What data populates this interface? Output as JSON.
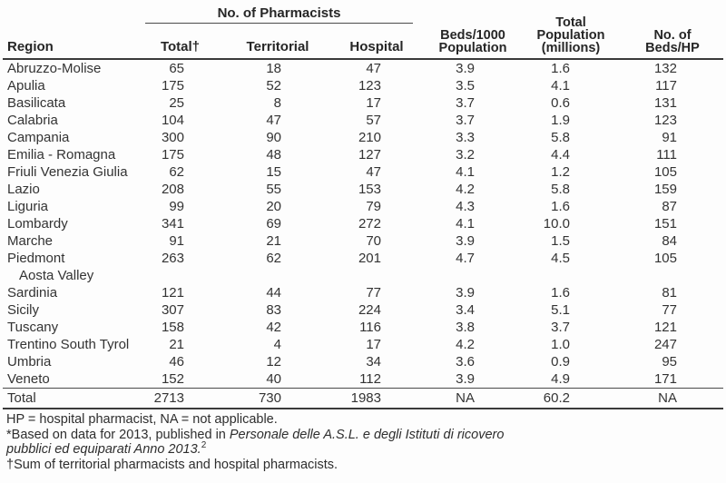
{
  "colors": {
    "text": "#2e2e2e",
    "rule": "#3a3a3a",
    "background": "#fdfdfd"
  },
  "table": {
    "spanner": "No. of Pharmacists",
    "headers": {
      "region": "Region",
      "total": "Total†",
      "territorial": "Territorial",
      "hospital": "Hospital",
      "beds_per_1000": [
        "Beds/1000",
        "Population"
      ],
      "total_population": [
        "Total",
        "Population",
        "(millions)"
      ],
      "beds_per_hp": [
        "No. of",
        "Beds/HP"
      ]
    },
    "rows": [
      {
        "region": "Abruzzo-Molise",
        "values": [
          "65",
          "18",
          "47",
          "3.9",
          "1.6",
          "132"
        ]
      },
      {
        "region": "Apulia",
        "values": [
          "175",
          "52",
          "123",
          "3.5",
          "4.1",
          "117"
        ]
      },
      {
        "region": "Basilicata",
        "values": [
          "25",
          "8",
          "17",
          "3.7",
          "0.6",
          "131"
        ]
      },
      {
        "region": "Calabria",
        "values": [
          "104",
          "47",
          "57",
          "3.7",
          "1.9",
          "123"
        ]
      },
      {
        "region": "Campania",
        "values": [
          "300",
          "90",
          "210",
          "3.3",
          "5.8",
          "91"
        ]
      },
      {
        "region": "Emilia - Romagna",
        "values": [
          "175",
          "48",
          "127",
          "3.2",
          "4.4",
          "111"
        ]
      },
      {
        "region": "Friuli Venezia Giulia",
        "values": [
          "62",
          "15",
          "47",
          "4.1",
          "1.2",
          "105"
        ]
      },
      {
        "region": "Lazio",
        "values": [
          "208",
          "55",
          "153",
          "4.2",
          "5.8",
          "159"
        ]
      },
      {
        "region": "Liguria",
        "values": [
          "99",
          "20",
          "79",
          "4.3",
          "1.6",
          "87"
        ]
      },
      {
        "region": "Lombardy",
        "values": [
          "341",
          "69",
          "272",
          "4.1",
          "10.0",
          "151"
        ]
      },
      {
        "region": "Marche",
        "values": [
          "91",
          "21",
          "70",
          "3.9",
          "1.5",
          "84"
        ]
      },
      {
        "region": [
          "Piedmont",
          "Aosta Valley"
        ],
        "values": [
          "263",
          "62",
          "201",
          "4.7",
          "4.5",
          "105"
        ]
      },
      {
        "region": "Sardinia",
        "values": [
          "121",
          "44",
          "77",
          "3.9",
          "1.6",
          "81"
        ]
      },
      {
        "region": "Sicily",
        "values": [
          "307",
          "83",
          "224",
          "3.4",
          "5.1",
          "77"
        ]
      },
      {
        "region": "Tuscany",
        "values": [
          "158",
          "42",
          "116",
          "3.8",
          "3.7",
          "121"
        ]
      },
      {
        "region": "Trentino South Tyrol",
        "values": [
          "21",
          "4",
          "17",
          "4.2",
          "1.0",
          "247"
        ]
      },
      {
        "region": "Umbria",
        "values": [
          "46",
          "12",
          "34",
          "3.6",
          "0.9",
          "95"
        ]
      },
      {
        "region": "Veneto",
        "values": [
          "152",
          "40",
          "112",
          "3.9",
          "4.9",
          "171"
        ]
      }
    ],
    "total_row": {
      "region": "Total",
      "values": [
        "2713",
        "730",
        "1983",
        "NA",
        "60.2",
        "NA"
      ]
    }
  },
  "footnotes": {
    "abbreviations": "HP = hospital pharmacist, NA = not applicable.",
    "source_roman": "*Based on data for 2013, published in ",
    "source_italic": "Personale delle A.S.L. e degli Istituti di ricovero pubblici ed equiparati Anno 2013.",
    "source_superscript": "2",
    "dagger": "†Sum of territorial pharmacists and hospital pharmacists."
  }
}
